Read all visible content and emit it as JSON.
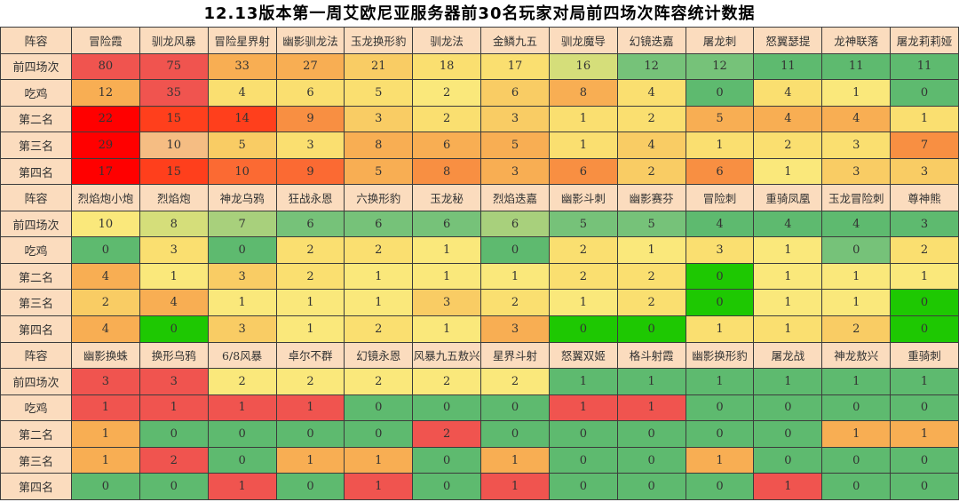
{
  "title": "12.13版本第一周艾欧尼亚服务器前30名玩家对局前四场次阵容统计数据",
  "corner_label": "阵容",
  "row_labels": [
    "前四场次",
    "吃鸡",
    "第二名",
    "第三名",
    "第四名"
  ],
  "palette": {
    "R": "#FF0000",
    "r": "#F0544F",
    "t": "#FF3F1C",
    "v": "#FB6A33",
    "o": "#F88F42",
    "p": "#F8AE53",
    "n": "#F5BD83",
    "c": "#F9CC64",
    "y": "#FADF70",
    "e": "#FAE87B",
    "d": "#D5DE7A",
    "l": "#A8D07C",
    "g": "#76C279",
    "h": "#5EBA6F",
    "G": "#1EC802"
  },
  "colors": {
    "header_bg": "#FBDCBE",
    "border": "#3c3c3c",
    "title_color": "#000000",
    "cell_text": "#333333"
  },
  "chart_data": [
    {
      "type": "heatmap",
      "columns": [
        "冒险霞",
        "驯龙风暴",
        "冒险星界射",
        "幽影驯龙法",
        "玉龙换形豹",
        "驯龙法",
        "金鳞九五",
        "驯龙魔导",
        "幻镜迭嘉",
        "屠龙刺",
        "怒翼瑟提",
        "龙神联落",
        "屠龙莉莉娅"
      ],
      "rows": [
        {
          "label": "前四场次",
          "values": [
            80,
            75,
            33,
            27,
            21,
            18,
            17,
            16,
            12,
            12,
            11,
            11,
            11
          ],
          "colors": [
            "r",
            "r",
            "p",
            "p",
            "c",
            "y",
            "y",
            "d",
            "g",
            "g",
            "h",
            "h",
            "h"
          ]
        },
        {
          "label": "吃鸡",
          "values": [
            12,
            35,
            4,
            6,
            5,
            2,
            6,
            8,
            4,
            0,
            4,
            1,
            0
          ],
          "colors": [
            "p",
            "r",
            "y",
            "y",
            "y",
            "e",
            "c",
            "p",
            "y",
            "h",
            "y",
            "e",
            "h"
          ]
        },
        {
          "label": "第二名",
          "values": [
            22,
            15,
            14,
            9,
            3,
            2,
            3,
            1,
            2,
            5,
            4,
            4,
            1
          ],
          "colors": [
            "R",
            "t",
            "t",
            "o",
            "c",
            "y",
            "c",
            "y",
            "y",
            "p",
            "p",
            "p",
            "y"
          ]
        },
        {
          "label": "第三名",
          "values": [
            29,
            10,
            5,
            3,
            8,
            6,
            5,
            1,
            4,
            1,
            2,
            3,
            7
          ],
          "colors": [
            "R",
            "n",
            "c",
            "y",
            "p",
            "p",
            "p",
            "y",
            "c",
            "y",
            "y",
            "y",
            "o"
          ]
        },
        {
          "label": "第四名",
          "values": [
            17,
            15,
            10,
            9,
            5,
            8,
            3,
            6,
            2,
            6,
            1,
            3,
            3
          ],
          "colors": [
            "R",
            "t",
            "v",
            "v",
            "p",
            "o",
            "p",
            "o",
            "c",
            "o",
            "e",
            "c",
            "c"
          ]
        }
      ]
    },
    {
      "type": "heatmap",
      "columns": [
        "烈焰炮小炮",
        "烈焰炮",
        "神龙乌鸦",
        "狂战永恩",
        "六换形豹",
        "玉龙秘",
        "烈焰迭嘉",
        "幽影斗刺",
        "幽影赛芬",
        "冒险刺",
        "重骑凤凰",
        "玉龙冒险刺",
        "尊神熊"
      ],
      "rows": [
        {
          "label": "前四场次",
          "values": [
            10,
            8,
            7,
            6,
            6,
            6,
            6,
            5,
            5,
            4,
            4,
            4,
            3
          ],
          "colors": [
            "e",
            "d",
            "l",
            "g",
            "g",
            "g",
            "l",
            "g",
            "g",
            "h",
            "h",
            "h",
            "h"
          ]
        },
        {
          "label": "吃鸡",
          "values": [
            0,
            3,
            0,
            2,
            2,
            1,
            0,
            2,
            1,
            3,
            1,
            0,
            2
          ],
          "colors": [
            "h",
            "y",
            "h",
            "y",
            "y",
            "e",
            "h",
            "y",
            "e",
            "y",
            "e",
            "g",
            "y"
          ]
        },
        {
          "label": "第二名",
          "values": [
            4,
            1,
            3,
            2,
            1,
            1,
            1,
            2,
            2,
            0,
            1,
            1,
            1
          ],
          "colors": [
            "p",
            "e",
            "c",
            "y",
            "e",
            "e",
            "e",
            "y",
            "y",
            "G",
            "e",
            "e",
            "e"
          ]
        },
        {
          "label": "第三名",
          "values": [
            2,
            4,
            1,
            1,
            1,
            3,
            2,
            1,
            2,
            0,
            1,
            1,
            0
          ],
          "colors": [
            "c",
            "p",
            "e",
            "e",
            "e",
            "c",
            "y",
            "e",
            "y",
            "G",
            "e",
            "e",
            "G"
          ]
        },
        {
          "label": "第四名",
          "values": [
            4,
            0,
            3,
            1,
            2,
            1,
            3,
            0,
            0,
            1,
            1,
            2,
            0
          ],
          "colors": [
            "p",
            "G",
            "c",
            "e",
            "y",
            "e",
            "p",
            "G",
            "G",
            "y",
            "y",
            "c",
            "G"
          ]
        }
      ]
    },
    {
      "type": "heatmap",
      "columns": [
        "幽影换蛛",
        "换形乌鸦",
        "6/8风暴",
        "卓尔不群",
        "幻镜永恩",
        "风暴九五敖兴",
        "星界斗射",
        "怒翼双姬",
        "格斗射霞",
        "幽影换形豹",
        "屠龙战",
        "神龙敖兴",
        "重骑刺"
      ],
      "rows": [
        {
          "label": "前四场次",
          "values": [
            3,
            3,
            2,
            2,
            2,
            2,
            2,
            1,
            1,
            1,
            1,
            1,
            1
          ],
          "colors": [
            "r",
            "r",
            "e",
            "e",
            "e",
            "e",
            "e",
            "h",
            "h",
            "h",
            "h",
            "h",
            "h"
          ]
        },
        {
          "label": "吃鸡",
          "values": [
            1,
            1,
            1,
            1,
            0,
            0,
            0,
            1,
            1,
            0,
            0,
            0,
            0
          ],
          "colors": [
            "r",
            "r",
            "r",
            "r",
            "h",
            "h",
            "h",
            "r",
            "r",
            "h",
            "h",
            "h",
            "h"
          ]
        },
        {
          "label": "第二名",
          "values": [
            1,
            0,
            0,
            0,
            0,
            2,
            0,
            0,
            0,
            0,
            0,
            1,
            1
          ],
          "colors": [
            "p",
            "h",
            "h",
            "h",
            "h",
            "r",
            "h",
            "h",
            "h",
            "h",
            "h",
            "p",
            "p"
          ]
        },
        {
          "label": "第三名",
          "values": [
            1,
            2,
            0,
            1,
            1,
            0,
            1,
            0,
            0,
            1,
            0,
            0,
            0
          ],
          "colors": [
            "p",
            "r",
            "h",
            "p",
            "p",
            "h",
            "p",
            "h",
            "h",
            "p",
            "h",
            "h",
            "h"
          ]
        },
        {
          "label": "第四名",
          "values": [
            0,
            0,
            1,
            0,
            1,
            0,
            1,
            0,
            0,
            0,
            1,
            0,
            0
          ],
          "colors": [
            "h",
            "h",
            "r",
            "h",
            "r",
            "h",
            "r",
            "h",
            "h",
            "h",
            "r",
            "h",
            "h"
          ]
        }
      ]
    }
  ]
}
